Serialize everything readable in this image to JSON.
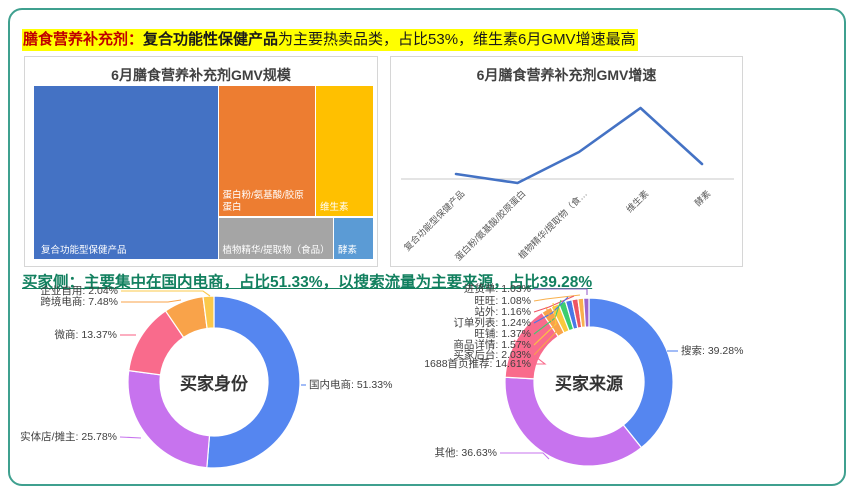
{
  "headlines": {
    "h1_prefix": "膳食营养补充剂：",
    "h1_emphasis": "复合功能性保健产品",
    "h1_rest": "为主要热卖品类，占比53%，维生素6月GMV增速最高",
    "h2": "买家侧：主要集中在国内电商，占比51.33%，以搜索流量为主要来源，占比39.28%"
  },
  "colors": {
    "frame_border": "#3FA08F",
    "highlight": "#FFFF00",
    "h1_prefix_color": "#C00000",
    "h2_color": "#12805F",
    "axis_line": "#C9C9C9"
  },
  "chart_data": [
    {
      "type": "treemap",
      "title": "6月膳食营养补充剂GMV规模",
      "note": "block sizes estimated from area; title states largest category = 53%",
      "items": [
        {
          "label": "复合功能型保健产品",
          "share_pct": 53,
          "color": "#4472C4"
        },
        {
          "label": "蛋白粉/氨基酸/胶原蛋白",
          "share_pct": 21,
          "color": "#ED7D31"
        },
        {
          "label": "维生素",
          "share_pct": 13,
          "color": "#FFC000"
        },
        {
          "label": "植物精华/提取物（食品）",
          "share_pct": 8,
          "color": "#A5A5A5"
        },
        {
          "label": "酵素",
          "share_pct": 3,
          "color": "#5B9BD5"
        }
      ]
    },
    {
      "type": "line",
      "title": "6月膳食营养补充剂GMV增速",
      "categories": [
        "复合功能型保健产品",
        "蛋白粉/氨基酸/胶原蛋白",
        "植物精华/提取物（食…",
        "维生素",
        "酵素"
      ],
      "values": [
        5,
        -4,
        27,
        71,
        15
      ],
      "note": "y axis unlabeled in source; values are relative estimates, 维生素 is the peak",
      "line_color": "#4472C4",
      "grid": "single zero baseline only",
      "legend": "none"
    },
    {
      "type": "donut",
      "title": "买家身份",
      "slices": [
        {
          "label": "国内电商",
          "value": 51.33,
          "color": "#5586F0"
        },
        {
          "label": "实体店/摊主",
          "value": 25.78,
          "color": "#C773EE"
        },
        {
          "label": "微商",
          "value": 13.37,
          "color": "#F96B8C"
        },
        {
          "label": "跨境电商",
          "value": 7.48,
          "color": "#F9A34A"
        },
        {
          "label": "企业自用",
          "value": 2.04,
          "color": "#FBC84B"
        }
      ]
    },
    {
      "type": "donut",
      "title": "买家来源",
      "slices": [
        {
          "label": "搜索",
          "value": 39.28,
          "color": "#5586F0"
        },
        {
          "label": "其他",
          "value": 36.63,
          "color": "#C773EE"
        },
        {
          "label": "1688首页推荐",
          "value": 14.61,
          "color": "#F96B8C"
        },
        {
          "label": "买家后台",
          "value": 2.03,
          "color": "#F9A34A"
        },
        {
          "label": "商品详情",
          "value": 1.57,
          "color": "#FBC93D"
        },
        {
          "label": "旺铺",
          "value": 1.37,
          "color": "#3DCD6E"
        },
        {
          "label": "订单列表",
          "value": 1.24,
          "color": "#4A77E8"
        },
        {
          "label": "站外",
          "value": 1.16,
          "color": "#ED5565"
        },
        {
          "label": "旺旺",
          "value": 1.08,
          "color": "#F8B04E"
        },
        {
          "label": "进货单",
          "value": 1.03,
          "color": "#9D65CE"
        }
      ]
    }
  ]
}
